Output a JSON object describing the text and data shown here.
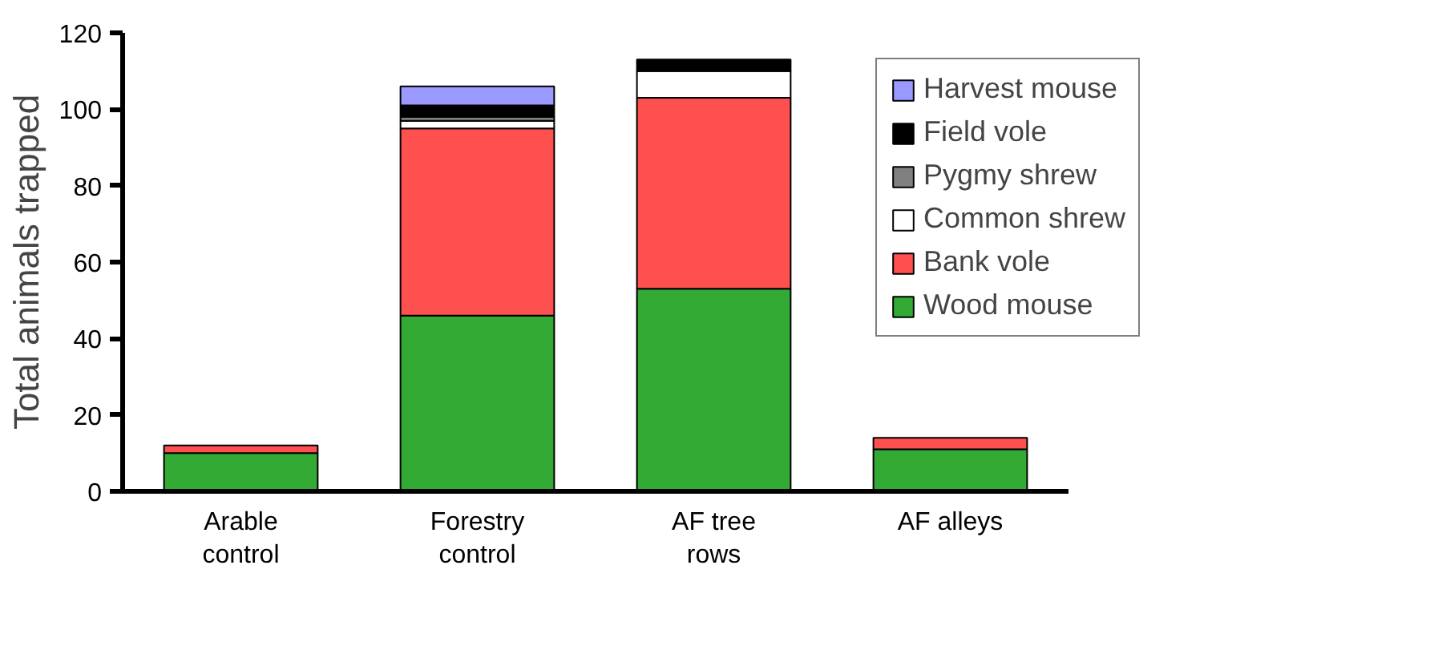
{
  "chart_data": {
    "type": "bar",
    "stacked": true,
    "ylabel": "Total animals trapped",
    "categories": [
      "Arable control",
      "Forestry control",
      "AF tree rows",
      "AF alleys"
    ],
    "series": [
      {
        "name": "Wood mouse",
        "color": "#33aa33",
        "values": [
          10,
          46,
          53,
          11
        ]
      },
      {
        "name": "Bank vole",
        "color": "#ff5050",
        "values": [
          2,
          49,
          50,
          3
        ]
      },
      {
        "name": "Common shrew",
        "color": "#ffffff",
        "values": [
          0,
          2,
          7,
          0
        ]
      },
      {
        "name": "Pygmy shrew",
        "color": "#808080",
        "values": [
          0,
          1,
          0,
          0
        ]
      },
      {
        "name": "Field vole",
        "color": "#000000",
        "values": [
          0,
          3,
          3,
          0
        ]
      },
      {
        "name": "Harvest mouse",
        "color": "#9999ff",
        "values": [
          0,
          5,
          0,
          0
        ]
      }
    ],
    "ylim": [
      0,
      120
    ],
    "yticks": [
      0,
      20,
      40,
      60,
      80,
      100,
      120
    ],
    "grid": false,
    "legend": "top right"
  }
}
